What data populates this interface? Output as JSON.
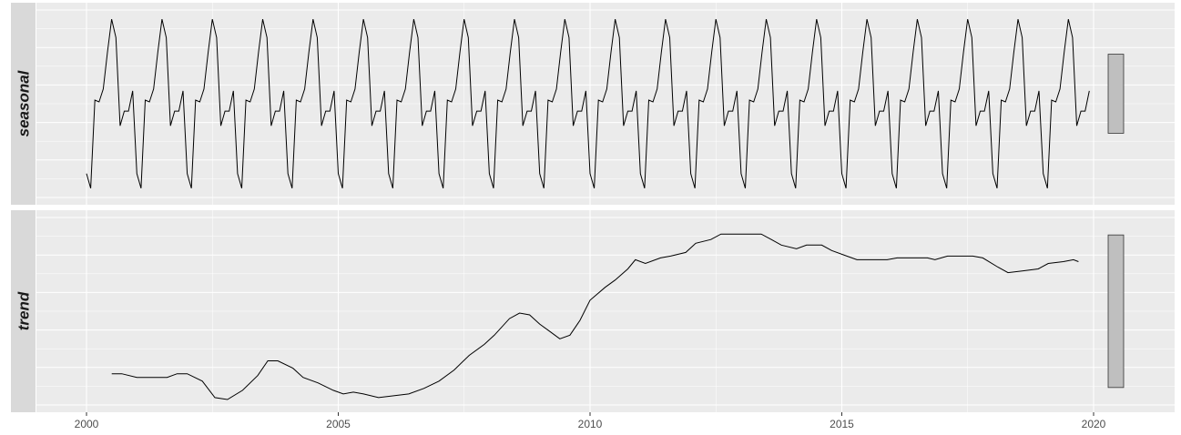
{
  "chart_data": {
    "type": "line",
    "title": "",
    "xlabel": "",
    "x_range": [
      2000,
      2020
    ],
    "x_ticks": [
      "2000",
      "2005",
      "2010",
      "2015",
      "2020"
    ],
    "panels": [
      {
        "name": "seasonal",
        "ylabel": "",
        "y_range": [
          0,
          1
        ],
        "series": [
          {
            "x_start": 2000.0,
            "x_step": 0.08333,
            "values": [
              0.12,
              0.04,
              0.52,
              0.51,
              0.58,
              0.78,
              0.96,
              0.86,
              0.38,
              0.46,
              0.46,
              0.57,
              0.12,
              0.04,
              0.52,
              0.51,
              0.58,
              0.78,
              0.96,
              0.86,
              0.38,
              0.46,
              0.46,
              0.57,
              0.12,
              0.04,
              0.52,
              0.51,
              0.58,
              0.78,
              0.96,
              0.86,
              0.38,
              0.46,
              0.46,
              0.57,
              0.12,
              0.04,
              0.52,
              0.51,
              0.58,
              0.78,
              0.96,
              0.86,
              0.38,
              0.46,
              0.46,
              0.57,
              0.12,
              0.04,
              0.52,
              0.51,
              0.58,
              0.78,
              0.96,
              0.86,
              0.38,
              0.46,
              0.46,
              0.57,
              0.12,
              0.04,
              0.52,
              0.51,
              0.58,
              0.78,
              0.96,
              0.86,
              0.38,
              0.46,
              0.46,
              0.57,
              0.12,
              0.04,
              0.52,
              0.51,
              0.58,
              0.78,
              0.96,
              0.86,
              0.38,
              0.46,
              0.46,
              0.57,
              0.12,
              0.04,
              0.52,
              0.51,
              0.58,
              0.78,
              0.96,
              0.86,
              0.38,
              0.46,
              0.46,
              0.57,
              0.12,
              0.04,
              0.52,
              0.51,
              0.58,
              0.78,
              0.96,
              0.86,
              0.38,
              0.46,
              0.46,
              0.57,
              0.12,
              0.04,
              0.52,
              0.51,
              0.58,
              0.78,
              0.96,
              0.86,
              0.38,
              0.46,
              0.46,
              0.57,
              0.12,
              0.04,
              0.52,
              0.51,
              0.58,
              0.78,
              0.96,
              0.86,
              0.38,
              0.46,
              0.46,
              0.57,
              0.12,
              0.04,
              0.52,
              0.51,
              0.58,
              0.78,
              0.96,
              0.86,
              0.38,
              0.46,
              0.46,
              0.57,
              0.12,
              0.04,
              0.52,
              0.51,
              0.58,
              0.78,
              0.96,
              0.86,
              0.38,
              0.46,
              0.46,
              0.57,
              0.12,
              0.04,
              0.52,
              0.51,
              0.58,
              0.78,
              0.96,
              0.86,
              0.38,
              0.46,
              0.46,
              0.57,
              0.12,
              0.04,
              0.52,
              0.51,
              0.58,
              0.78,
              0.96,
              0.86,
              0.38,
              0.46,
              0.46,
              0.57,
              0.12,
              0.04,
              0.52,
              0.51,
              0.58,
              0.78,
              0.96,
              0.86,
              0.38,
              0.46,
              0.46,
              0.57,
              0.12,
              0.04,
              0.52,
              0.51,
              0.58,
              0.78,
              0.96,
              0.86,
              0.38,
              0.46,
              0.46,
              0.57,
              0.12,
              0.04,
              0.52,
              0.51,
              0.58,
              0.78,
              0.96,
              0.86,
              0.38,
              0.46,
              0.46,
              0.57,
              0.12,
              0.04,
              0.52,
              0.51,
              0.58,
              0.78,
              0.96,
              0.86,
              0.38,
              0.46,
              0.46,
              0.57,
              0.12,
              0.04,
              0.52,
              0.51,
              0.58,
              0.78,
              0.96,
              0.86,
              0.38,
              0.46,
              0.46,
              0.57
            ]
          }
        ],
        "scale_bar_fraction": 0.43
      },
      {
        "name": "trend",
        "ylabel": "",
        "y_range": [
          0,
          1
        ],
        "series": [
          {
            "x": [
              2000.5,
              2000.7,
              2001.0,
              2001.3,
              2001.6,
              2001.8,
              2002.0,
              2002.3,
              2002.55,
              2002.8,
              2003.1,
              2003.4,
              2003.6,
              2003.8,
              2004.1,
              2004.3,
              2004.6,
              2004.9,
              2005.1,
              2005.3,
              2005.5,
              2005.8,
              2006.1,
              2006.4,
              2006.7,
              2007.0,
              2007.3,
              2007.6,
              2007.9,
              2008.1,
              2008.4,
              2008.6,
              2008.8,
              2009.0,
              2009.2,
              2009.4,
              2009.6,
              2009.8,
              2010.0,
              2010.3,
              2010.5,
              2010.75,
              2010.9,
              2011.1,
              2011.4,
              2011.6,
              2011.9,
              2012.1,
              2012.4,
              2012.6,
              2012.9,
              2013.1,
              2013.4,
              2013.6,
              2013.8,
              2014.1,
              2014.3,
              2014.6,
              2014.8,
              2015.1,
              2015.3,
              2015.6,
              2015.9,
              2016.1,
              2016.4,
              2016.7,
              2016.85,
              2017.1,
              2017.4,
              2017.6,
              2017.8,
              2018.1,
              2018.3,
              2018.6,
              2018.9,
              2019.1,
              2019.4,
              2019.6,
              2019.7
            ],
            "values": [
              0.16,
              0.16,
              0.14,
              0.14,
              0.14,
              0.16,
              0.16,
              0.12,
              0.03,
              0.02,
              0.07,
              0.15,
              0.23,
              0.23,
              0.19,
              0.14,
              0.11,
              0.07,
              0.05,
              0.06,
              0.05,
              0.03,
              0.04,
              0.05,
              0.08,
              0.12,
              0.18,
              0.26,
              0.32,
              0.37,
              0.46,
              0.49,
              0.48,
              0.43,
              0.39,
              0.35,
              0.37,
              0.45,
              0.56,
              0.63,
              0.67,
              0.73,
              0.78,
              0.76,
              0.79,
              0.8,
              0.82,
              0.87,
              0.89,
              0.92,
              0.92,
              0.92,
              0.92,
              0.89,
              0.86,
              0.84,
              0.86,
              0.86,
              0.83,
              0.8,
              0.78,
              0.78,
              0.78,
              0.79,
              0.79,
              0.79,
              0.78,
              0.8,
              0.8,
              0.8,
              0.79,
              0.74,
              0.71,
              0.72,
              0.73,
              0.76,
              0.77,
              0.78,
              0.77
            ]
          }
        ],
        "scale_bar_fraction": 0.83
      }
    ],
    "colors": {
      "panel_bg": "#ebebeb",
      "grid": "#ffffff",
      "strip_bg": "#d9d9d9",
      "line": "#000000",
      "scale_bar_fill": "#bfbfbf",
      "scale_bar_stroke": "#333333"
    }
  }
}
